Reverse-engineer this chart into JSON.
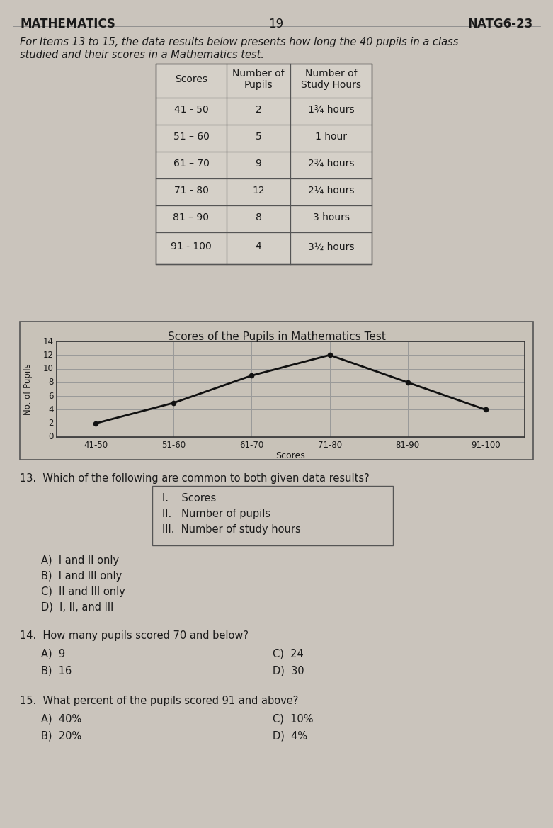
{
  "header_left": "MATHEMATICS",
  "header_center": "19",
  "header_right": "NATG6-23",
  "intro_text_1": "For Items 13 to 15, the data results below presents how long the 40 pupils in a class",
  "intro_text_2": "studied and their scores in a Mathematics test.",
  "table_headers": [
    "Scores",
    "Number of\nPupils",
    "Number of\nStudy Hours"
  ],
  "table_data": [
    [
      "41 - 50",
      "2",
      "1¾ hours"
    ],
    [
      "51 – 60",
      "5",
      "1 hour"
    ],
    [
      "61 – 70",
      "9",
      "2¾ hours"
    ],
    [
      "71 - 80",
      "12",
      "2¼ hours"
    ],
    [
      "81 – 90",
      "8",
      "3 hours"
    ],
    [
      "91 - 100",
      "4",
      "3½ hours"
    ]
  ],
  "chart_title": "Scores of the Pupils in Mathematics Test",
  "chart_x_labels": [
    "41-50",
    "51-60",
    "61-70",
    "71-80",
    "81-90",
    "91-100"
  ],
  "chart_y_values": [
    2,
    5,
    9,
    12,
    8,
    4
  ],
  "chart_xlabel": "Scores",
  "chart_ylabel": "No. of Pupils",
  "chart_ylim": [
    0,
    14
  ],
  "chart_yticks": [
    0,
    2,
    4,
    6,
    8,
    10,
    12,
    14
  ],
  "q13_text": "13.  Which of the following are common to both given data results?",
  "q13_box": [
    "I.    Scores",
    "II.   Number of pupils",
    "III.  Number of study hours"
  ],
  "q13_choices": [
    "A)  I and II only",
    "B)  I and III only",
    "C)  II and III only",
    "D)  I, II, and III"
  ],
  "q14_text": "14.  How many pupils scored 70 and below?",
  "q14_choices_left": [
    "A)  9",
    "B)  16"
  ],
  "q14_choices_right": [
    "C)  24",
    "D)  30"
  ],
  "q15_text": "15.  What percent of the pupils scored 91 and above?",
  "q15_choices_left": [
    "A)  40%",
    "B)  20%"
  ],
  "q15_choices_right": [
    "C)  10%",
    "D)  4%"
  ],
  "bg_color": "#cac4bc",
  "text_color": "#1a1a1a",
  "table_bg": "#d5d0c8",
  "chart_bg": "#c8c2b8",
  "line_color": "#111111",
  "grid_color": "#aaaaaa",
  "border_color": "#555555"
}
